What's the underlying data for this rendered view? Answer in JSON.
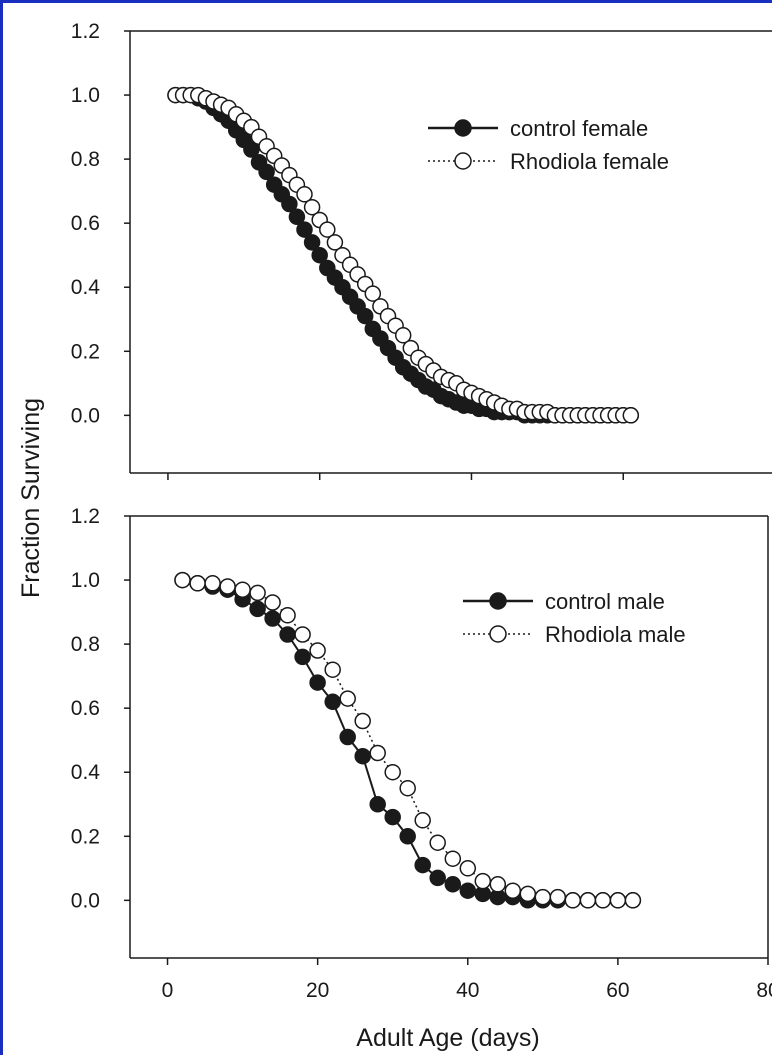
{
  "chart_data": [
    {
      "type": "scatter",
      "panel": "top",
      "xlim": [
        -5,
        80
      ],
      "ylim": [
        -0.18,
        1.2
      ],
      "yticks": [
        "0.0",
        "0.2",
        "0.4",
        "0.6",
        "0.8",
        "1.0",
        "1.2"
      ],
      "ytick_values": [
        0.0,
        0.2,
        0.4,
        0.6,
        0.8,
        1.0,
        1.2
      ],
      "xticks_marks_only": [
        0,
        20,
        40,
        60,
        80
      ],
      "legend_position": "top-right",
      "series": [
        {
          "name": "control female",
          "marker": "filled-circle",
          "line": "solid",
          "x": [
            1,
            2,
            3,
            4,
            5,
            6,
            7,
            8,
            9,
            10,
            11,
            12,
            13,
            14,
            15,
            16,
            17,
            18,
            19,
            20,
            21,
            22,
            23,
            24,
            25,
            26,
            27,
            28,
            29,
            30,
            31,
            32,
            33,
            34,
            35,
            36,
            37,
            38,
            39,
            40,
            41,
            42,
            43,
            44,
            45,
            46,
            47,
            48,
            49,
            50,
            51,
            52,
            53,
            54,
            55,
            56,
            57,
            58,
            59,
            60,
            61
          ],
          "y": [
            1.0,
            1.0,
            1.0,
            0.99,
            0.98,
            0.96,
            0.94,
            0.92,
            0.89,
            0.86,
            0.83,
            0.79,
            0.76,
            0.72,
            0.69,
            0.66,
            0.62,
            0.58,
            0.54,
            0.5,
            0.46,
            0.43,
            0.4,
            0.37,
            0.34,
            0.31,
            0.27,
            0.24,
            0.21,
            0.18,
            0.15,
            0.13,
            0.11,
            0.09,
            0.08,
            0.06,
            0.05,
            0.04,
            0.03,
            0.03,
            0.02,
            0.02,
            0.01,
            0.01,
            0.01,
            0.01,
            0.0,
            0.0,
            0.0,
            0.0,
            0.0,
            0.0,
            0.0,
            0.0,
            0.0,
            0.0,
            0.0,
            0.0,
            0.0,
            0.0,
            0.0
          ]
        },
        {
          "name": "Rhodiola female",
          "marker": "open-circle",
          "line": "dotted",
          "x": [
            1,
            2,
            3,
            4,
            5,
            6,
            7,
            8,
            9,
            10,
            11,
            12,
            13,
            14,
            15,
            16,
            17,
            18,
            19,
            20,
            21,
            22,
            23,
            24,
            25,
            26,
            27,
            28,
            29,
            30,
            31,
            32,
            33,
            34,
            35,
            36,
            37,
            38,
            39,
            40,
            41,
            42,
            43,
            44,
            45,
            46,
            47,
            48,
            49,
            50,
            51,
            52,
            53,
            54,
            55,
            56,
            57,
            58,
            59,
            60,
            61
          ],
          "y": [
            1.0,
            1.0,
            1.0,
            1.0,
            0.99,
            0.98,
            0.97,
            0.96,
            0.94,
            0.92,
            0.9,
            0.87,
            0.84,
            0.81,
            0.78,
            0.75,
            0.72,
            0.69,
            0.65,
            0.61,
            0.58,
            0.54,
            0.5,
            0.47,
            0.44,
            0.41,
            0.38,
            0.34,
            0.31,
            0.28,
            0.25,
            0.21,
            0.18,
            0.16,
            0.14,
            0.12,
            0.11,
            0.1,
            0.08,
            0.07,
            0.06,
            0.05,
            0.04,
            0.03,
            0.02,
            0.02,
            0.01,
            0.01,
            0.01,
            0.01,
            0.0,
            0.0,
            0.0,
            0.0,
            0.0,
            0.0,
            0.0,
            0.0,
            0.0,
            0.0,
            0.0
          ]
        }
      ]
    },
    {
      "type": "scatter",
      "panel": "bottom",
      "xlim": [
        -5,
        80
      ],
      "ylim": [
        -0.18,
        1.2
      ],
      "yticks": [
        "0.0",
        "0.2",
        "0.4",
        "0.6",
        "0.8",
        "1.0",
        "1.2"
      ],
      "ytick_values": [
        0.0,
        0.2,
        0.4,
        0.6,
        0.8,
        1.0,
        1.2
      ],
      "xticks": [
        "0",
        "20",
        "40",
        "60",
        "80"
      ],
      "xtick_values": [
        0,
        20,
        40,
        60,
        80
      ],
      "xlabel": "Adult Age (days)",
      "legend_position": "top-right",
      "series": [
        {
          "name": "control male",
          "marker": "filled-circle",
          "line": "solid",
          "x": [
            2,
            4,
            6,
            8,
            10,
            12,
            14,
            16,
            18,
            20,
            22,
            24,
            26,
            28,
            30,
            32,
            34,
            36,
            38,
            40,
            42,
            44,
            46,
            48,
            50,
            52,
            54,
            56,
            58,
            60,
            62
          ],
          "y": [
            1.0,
            0.99,
            0.98,
            0.97,
            0.94,
            0.91,
            0.88,
            0.83,
            0.76,
            0.68,
            0.62,
            0.51,
            0.45,
            0.3,
            0.26,
            0.2,
            0.11,
            0.07,
            0.05,
            0.03,
            0.02,
            0.01,
            0.01,
            0.0,
            0.0,
            0.0,
            0.0,
            0.0,
            0.0,
            0.0,
            0.0
          ]
        },
        {
          "name": "Rhodiola male",
          "marker": "open-circle",
          "line": "dotted",
          "x": [
            2,
            4,
            6,
            8,
            10,
            12,
            14,
            16,
            18,
            20,
            22,
            24,
            26,
            28,
            30,
            32,
            34,
            36,
            38,
            40,
            42,
            44,
            46,
            48,
            50,
            52,
            54,
            56,
            58,
            60,
            62
          ],
          "y": [
            1.0,
            0.99,
            0.99,
            0.98,
            0.97,
            0.96,
            0.93,
            0.89,
            0.83,
            0.78,
            0.72,
            0.63,
            0.56,
            0.46,
            0.4,
            0.35,
            0.25,
            0.18,
            0.13,
            0.1,
            0.06,
            0.05,
            0.03,
            0.02,
            0.01,
            0.01,
            0.0,
            0.0,
            0.0,
            0.0,
            0.0
          ]
        }
      ]
    }
  ],
  "ylabel": "Fraction Surviving",
  "colors": {
    "frame": "#1a2fbf",
    "ink": "#1a1a1a",
    "open_fill": "#ffffff"
  }
}
